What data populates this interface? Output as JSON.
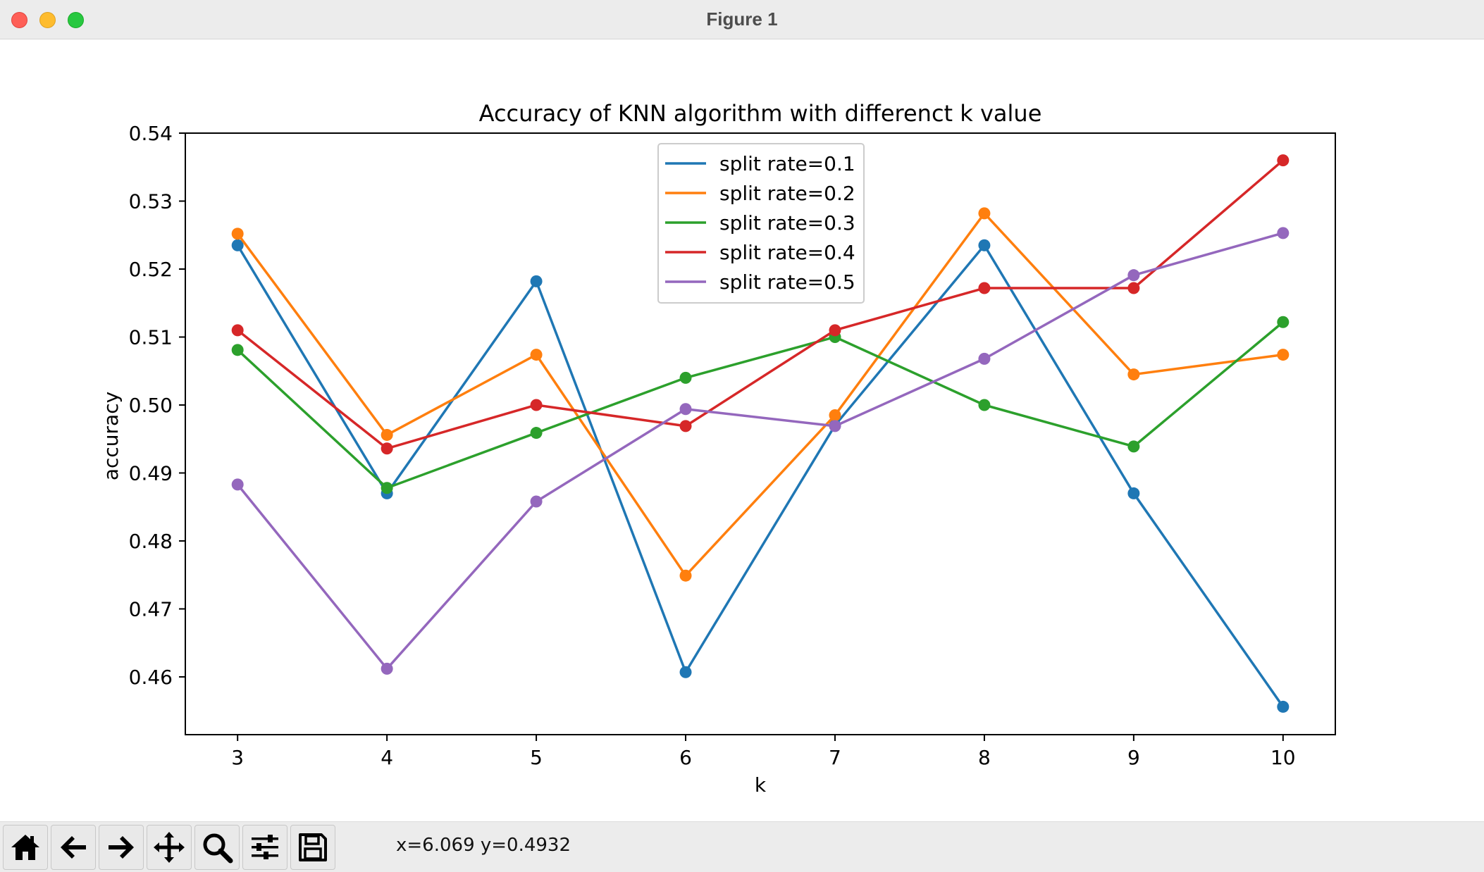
{
  "window": {
    "title": "Figure 1"
  },
  "toolbar": {
    "buttons": [
      {
        "name": "home-icon"
      },
      {
        "name": "back-arrow-icon"
      },
      {
        "name": "forward-arrow-icon"
      },
      {
        "name": "pan-icon"
      },
      {
        "name": "zoom-icon"
      },
      {
        "name": "configure-subplots-icon"
      },
      {
        "name": "save-icon"
      }
    ],
    "coords": "x=6.069 y=0.4932"
  },
  "chart_data": {
    "type": "line",
    "title": "Accuracy of KNN algorithm with differenct k value",
    "xlabel": "k",
    "ylabel": "accuracy",
    "x": [
      3,
      4,
      5,
      6,
      7,
      8,
      9,
      10
    ],
    "xlim": [
      2.65,
      10.35
    ],
    "ylim": [
      0.4515,
      0.54
    ],
    "xticks": [
      "3",
      "4",
      "5",
      "6",
      "7",
      "8",
      "9",
      "10"
    ],
    "yticks": [
      "0.46",
      "0.47",
      "0.48",
      "0.49",
      "0.50",
      "0.51",
      "0.52",
      "0.53",
      "0.54"
    ],
    "ytick_values": [
      0.46,
      0.47,
      0.48,
      0.49,
      0.5,
      0.51,
      0.52,
      0.53,
      0.54
    ],
    "grid": false,
    "legend_position": "top-center",
    "series": [
      {
        "name": "split rate=0.1",
        "color": "#1f77b4",
        "values": [
          0.5235,
          0.487,
          0.5182,
          0.4607,
          0.497,
          0.5235,
          0.487,
          0.4556
        ]
      },
      {
        "name": "split rate=0.2",
        "color": "#ff7f0e",
        "values": [
          0.5252,
          0.4956,
          0.5074,
          0.4749,
          0.4985,
          0.5282,
          0.5045,
          0.5074
        ]
      },
      {
        "name": "split rate=0.3",
        "color": "#2ca02c",
        "values": [
          0.5081,
          0.4878,
          0.4959,
          0.504,
          0.51,
          0.5,
          0.4939,
          0.5122
        ]
      },
      {
        "name": "split rate=0.4",
        "color": "#d62728",
        "values": [
          0.511,
          0.4936,
          0.5,
          0.4969,
          0.511,
          0.5172,
          0.5172,
          0.536
        ]
      },
      {
        "name": "split rate=0.5",
        "color": "#9467bd",
        "values": [
          0.4883,
          0.4612,
          0.4858,
          0.4994,
          0.4969,
          0.5068,
          0.5191,
          0.5253
        ]
      }
    ]
  }
}
